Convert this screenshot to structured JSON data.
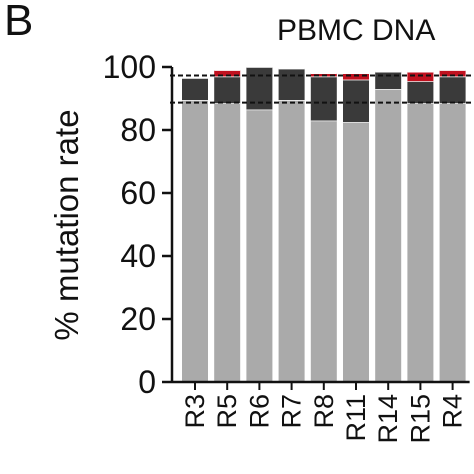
{
  "panel_letter": "B",
  "chart_data": {
    "type": "bar",
    "stacked": true,
    "title": "PBMC DNA",
    "xlabel": "",
    "ylabel": "% mutation rate",
    "ylim": [
      0,
      100
    ],
    "yticks": [
      0,
      20,
      40,
      60,
      80,
      100
    ],
    "categories": [
      "R3",
      "R5",
      "R6",
      "R7",
      "R8",
      "R11",
      "R14",
      "R15",
      "R4"
    ],
    "series": [
      {
        "color": "#aaaaaa",
        "values": [
          89.5,
          88.5,
          86.5,
          89.5,
          83.0,
          82.5,
          93.0,
          88.5,
          88.5
        ]
      },
      {
        "color": "#3a3a3a",
        "values": [
          7.0,
          8.5,
          13.5,
          10.0,
          14.0,
          13.5,
          5.5,
          7.0,
          8.5
        ]
      },
      {
        "color": "#c0111f",
        "values": [
          0,
          2.0,
          0,
          0,
          1.0,
          2.0,
          0,
          3.0,
          2.0
        ]
      }
    ],
    "reference_lines": [
      97.3,
      88.7
    ],
    "grid": false
  }
}
